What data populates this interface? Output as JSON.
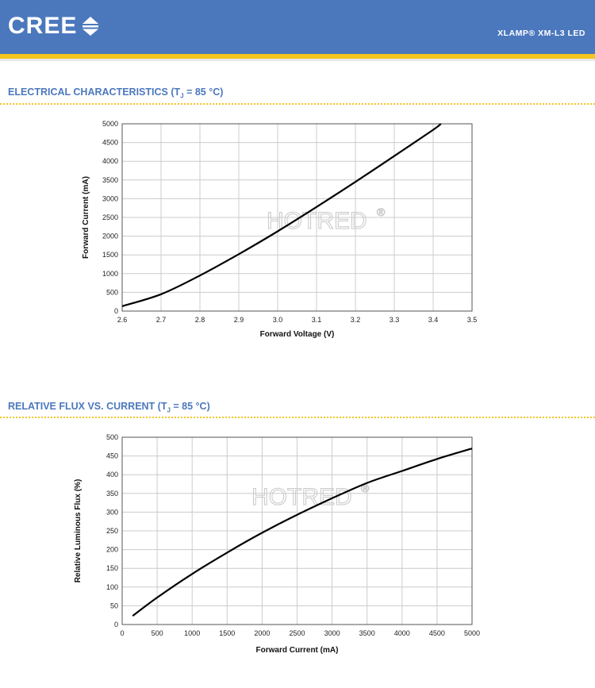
{
  "header": {
    "logo_text": "CREE",
    "product": "XLAMP® XM-L3 LED"
  },
  "charts": [
    {
      "section_title_pre": "ELECTRICAL CHARACTERISTICS (T",
      "section_title_sub": "J",
      "section_title_post": " = 85 °C)"
    },
    {
      "section_title_pre": "RELATIVE FLUX VS. CURRENT (T",
      "section_title_sub": "J",
      "section_title_post": " = 85 °C)"
    }
  ],
  "watermark": "HOTRED",
  "watermark_mark": "®",
  "colors": {
    "brand_blue": "#4b78bd",
    "accent_yellow": "#f2c61f",
    "curve": "#000000",
    "grid": "#cccccc"
  },
  "chart_data": [
    {
      "type": "line",
      "title": "ELECTRICAL CHARACTERISTICS (TJ = 85 °C)",
      "xlabel": "Forward Voltage (V)",
      "ylabel": "Forward Current (mA)",
      "xlim": [
        2.6,
        3.5
      ],
      "ylim": [
        0,
        5000
      ],
      "xticks": [
        "2.6",
        "2.7",
        "2.8",
        "2.9",
        "3.0",
        "3.1",
        "3.2",
        "3.3",
        "3.4",
        "3.5"
      ],
      "yticks": [
        "0",
        "500",
        "1000",
        "1500",
        "2000",
        "2500",
        "3000",
        "3500",
        "4000",
        "4500",
        "5000"
      ],
      "grid": true,
      "series": [
        {
          "x": [
            2.6,
            2.7,
            2.8,
            2.9,
            3.0,
            3.1,
            3.2,
            3.3,
            3.4,
            3.42
          ],
          "y": [
            130,
            450,
            950,
            1520,
            2130,
            2780,
            3450,
            4140,
            4840,
            5000
          ]
        }
      ]
    },
    {
      "type": "line",
      "title": "RELATIVE FLUX VS. CURRENT (TJ = 85 °C)",
      "xlabel": "Forward Current (mA)",
      "ylabel": "Relative Luminous Flux (%)",
      "xlim": [
        0,
        5000
      ],
      "ylim": [
        0,
        500
      ],
      "xticks": [
        "0",
        "500",
        "1000",
        "1500",
        "2000",
        "2500",
        "3000",
        "3500",
        "4000",
        "4500",
        "5000"
      ],
      "yticks": [
        "0",
        "50",
        "100",
        "150",
        "200",
        "250",
        "300",
        "350",
        "400",
        "450",
        "500"
      ],
      "grid": true,
      "series": [
        {
          "x": [
            150,
            500,
            1000,
            1500,
            2000,
            2500,
            3000,
            3500,
            4000,
            4500,
            5000
          ],
          "y": [
            23,
            72,
            135,
            192,
            245,
            293,
            337,
            378,
            410,
            442,
            470
          ]
        }
      ]
    }
  ]
}
